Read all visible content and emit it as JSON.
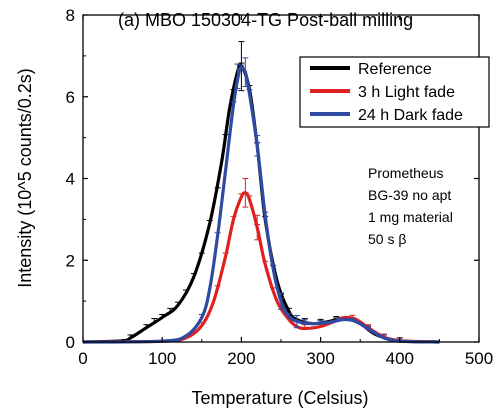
{
  "chart_data": {
    "type": "line",
    "title": "(a) MBO 150304-TG Post-ball milling",
    "xlabel": "Temperature (Celsius)",
    "ylabel": "Intensity (10^5 counts/0.2s)",
    "xlim": [
      0,
      500
    ],
    "ylim": [
      0,
      8
    ],
    "xticks": [
      0,
      100,
      200,
      300,
      400,
      500
    ],
    "yticks": [
      0,
      2,
      4,
      6,
      8
    ],
    "grid": false,
    "legend_position": "top-right",
    "series": [
      {
        "name": "Reference",
        "color": "#000000",
        "points": [
          [
            0,
            0
          ],
          [
            50,
            0.03
          ],
          [
            60,
            0.1
          ],
          [
            80,
            0.35
          ],
          [
            100,
            0.6
          ],
          [
            120,
            0.9
          ],
          [
            140,
            1.6
          ],
          [
            160,
            2.9
          ],
          [
            175,
            4.4
          ],
          [
            185,
            5.7
          ],
          [
            195,
            6.6
          ],
          [
            200,
            6.75
          ],
          [
            210,
            6.2
          ],
          [
            220,
            4.8
          ],
          [
            230,
            3.0
          ],
          [
            245,
            1.5
          ],
          [
            260,
            0.75
          ],
          [
            270,
            0.55
          ],
          [
            290,
            0.45
          ],
          [
            310,
            0.5
          ],
          [
            330,
            0.58
          ],
          [
            350,
            0.45
          ],
          [
            370,
            0.18
          ],
          [
            400,
            0.03
          ],
          [
            450,
            0.0
          ]
        ],
        "error_markers": [
          [
            60,
            0.1
          ],
          [
            80,
            0.35
          ],
          [
            90,
            0.5
          ],
          [
            100,
            0.6
          ],
          [
            110,
            0.75
          ],
          [
            120,
            0.9
          ],
          [
            130,
            1.2
          ],
          [
            140,
            1.6
          ],
          [
            150,
            2.1
          ],
          [
            160,
            2.9
          ],
          [
            170,
            3.7
          ],
          [
            180,
            5.0
          ],
          [
            190,
            6.1
          ],
          [
            200,
            6.75
          ],
          [
            210,
            6.2
          ],
          [
            220,
            4.8
          ],
          [
            230,
            3.0
          ],
          [
            240,
            1.8
          ],
          [
            250,
            1.1
          ],
          [
            260,
            0.75
          ],
          [
            280,
            0.5
          ],
          [
            300,
            0.48
          ],
          [
            320,
            0.55
          ],
          [
            340,
            0.52
          ],
          [
            360,
            0.3
          ],
          [
            380,
            0.1
          ],
          [
            400,
            0.03
          ]
        ],
        "error_bars": [
          [
            200,
            6.75,
            0.6
          ]
        ]
      },
      {
        "name": "3 h Light fade",
        "color": "#e02020",
        "points": [
          [
            0,
            0
          ],
          [
            100,
            0.02
          ],
          [
            130,
            0.1
          ],
          [
            150,
            0.4
          ],
          [
            165,
            1.0
          ],
          [
            180,
            2.1
          ],
          [
            190,
            3.0
          ],
          [
            200,
            3.55
          ],
          [
            205,
            3.65
          ],
          [
            210,
            3.5
          ],
          [
            220,
            2.8
          ],
          [
            230,
            1.9
          ],
          [
            245,
            1.0
          ],
          [
            260,
            0.55
          ],
          [
            270,
            0.38
          ],
          [
            280,
            0.33
          ],
          [
            300,
            0.38
          ],
          [
            320,
            0.52
          ],
          [
            330,
            0.6
          ],
          [
            345,
            0.55
          ],
          [
            360,
            0.35
          ],
          [
            380,
            0.12
          ],
          [
            400,
            0.03
          ],
          [
            450,
            0.0
          ]
        ],
        "error_markers": [
          [
            150,
            0.4
          ],
          [
            170,
            1.3
          ],
          [
            180,
            2.1
          ],
          [
            190,
            3.0
          ],
          [
            200,
            3.55
          ],
          [
            210,
            3.5
          ],
          [
            220,
            2.8
          ],
          [
            230,
            1.9
          ],
          [
            240,
            1.25
          ],
          [
            250,
            0.8
          ],
          [
            260,
            0.55
          ],
          [
            280,
            0.35
          ],
          [
            300,
            0.38
          ],
          [
            320,
            0.52
          ],
          [
            340,
            0.58
          ],
          [
            360,
            0.35
          ],
          [
            380,
            0.12
          ],
          [
            400,
            0.03
          ]
        ],
        "error_bars": [
          [
            205,
            3.65,
            0.35
          ],
          [
            220,
            2.8,
            0.3
          ]
        ]
      },
      {
        "name": "24 h Dark fade",
        "color": "#2f4aa3",
        "points": [
          [
            0,
            0
          ],
          [
            100,
            0.02
          ],
          [
            130,
            0.15
          ],
          [
            150,
            0.6
          ],
          [
            160,
            1.3
          ],
          [
            170,
            2.6
          ],
          [
            180,
            4.2
          ],
          [
            190,
            5.8
          ],
          [
            197,
            6.6
          ],
          [
            200,
            6.7
          ],
          [
            205,
            6.6
          ],
          [
            210,
            6.1
          ],
          [
            220,
            4.8
          ],
          [
            230,
            3.1
          ],
          [
            240,
            1.8
          ],
          [
            250,
            1.0
          ],
          [
            260,
            0.62
          ],
          [
            275,
            0.48
          ],
          [
            290,
            0.45
          ],
          [
            310,
            0.48
          ],
          [
            330,
            0.55
          ],
          [
            345,
            0.5
          ],
          [
            360,
            0.32
          ],
          [
            380,
            0.1
          ],
          [
            400,
            0.02
          ],
          [
            450,
            0.0
          ]
        ],
        "error_markers": [
          [
            150,
            0.6
          ],
          [
            170,
            2.6
          ],
          [
            190,
            5.8
          ],
          [
            200,
            6.7
          ],
          [
            210,
            6.1
          ],
          [
            220,
            4.8
          ],
          [
            230,
            3.1
          ],
          [
            240,
            1.8
          ],
          [
            250,
            1.0
          ],
          [
            260,
            0.62
          ],
          [
            280,
            0.47
          ],
          [
            300,
            0.45
          ],
          [
            320,
            0.52
          ],
          [
            340,
            0.5
          ],
          [
            360,
            0.32
          ],
          [
            380,
            0.1
          ],
          [
            400,
            0.02
          ]
        ],
        "error_bars": [
          [
            195,
            6.5,
            0.3
          ],
          [
            205,
            6.6,
            0.35
          ],
          [
            220,
            4.8,
            0.25
          ],
          [
            250,
            1.0,
            0.2
          ],
          [
            270,
            0.5,
            0.15
          ]
        ]
      }
    ],
    "annotation": [
      "Prometheus",
      "BG-39 no apt",
      "1 mg material",
      "50 s β"
    ]
  }
}
